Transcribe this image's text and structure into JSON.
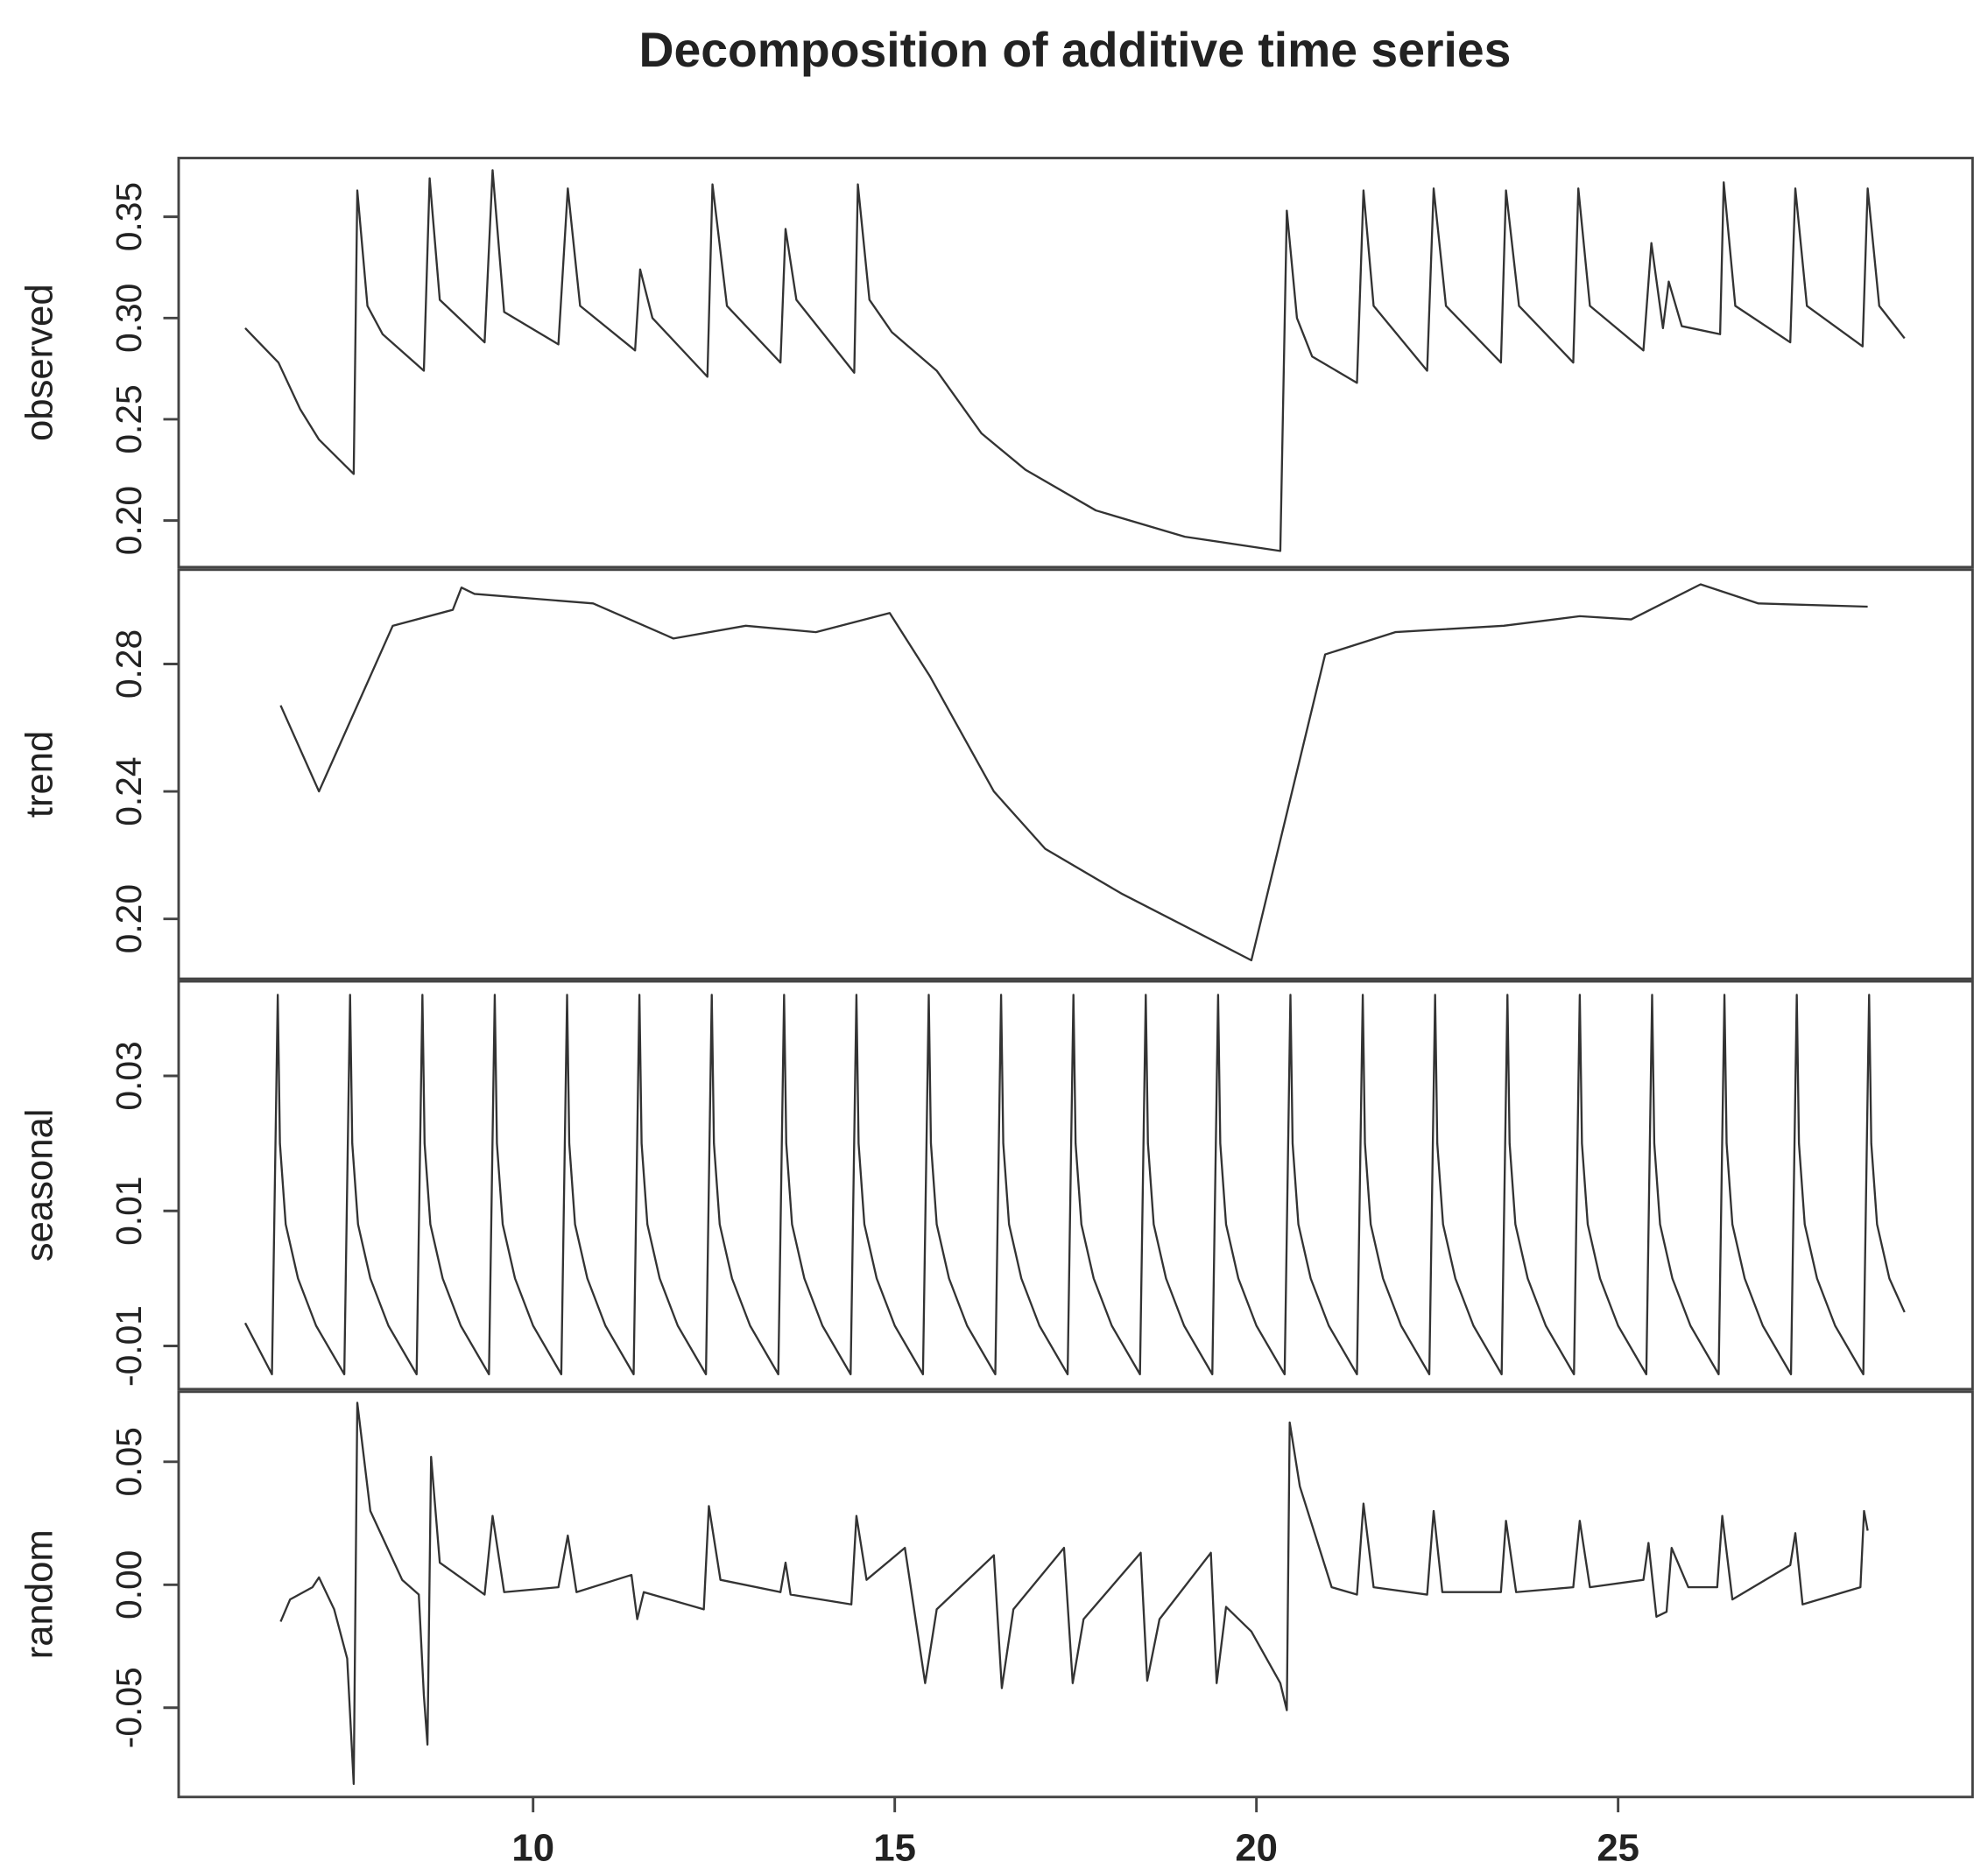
{
  "chart_data": [
    {
      "type": "line",
      "title": "Decomposition of additive time series",
      "ylabel": "observed",
      "x": [
        6.02,
        6.48,
        6.78,
        7.04,
        7.52,
        7.57,
        7.71,
        7.92,
        8.49,
        8.57,
        8.71,
        9.33,
        9.44,
        9.6,
        10.35,
        10.48,
        10.65,
        11.41,
        11.48,
        11.65,
        12.41,
        12.48,
        12.68,
        13.42,
        13.49,
        13.64,
        14.44,
        14.49,
        14.65,
        14.96,
        15.58,
        16.2,
        16.81,
        17.78,
        19.01,
        20.33,
        20.42,
        20.56,
        20.77,
        21.39,
        21.48,
        21.62,
        22.36,
        22.45,
        22.62,
        23.38,
        23.45,
        23.63,
        24.38,
        24.45,
        24.61,
        25.35,
        25.46,
        25.62,
        25.7,
        25.88,
        26.41,
        26.46,
        26.62,
        27.38,
        27.45,
        27.61,
        28.38,
        28.45,
        28.61,
        28.96
      ],
      "values": [
        0.295,
        0.278,
        0.255,
        0.24,
        0.223,
        0.363,
        0.306,
        0.292,
        0.274,
        0.369,
        0.309,
        0.288,
        0.373,
        0.303,
        0.287,
        0.364,
        0.306,
        0.284,
        0.324,
        0.3,
        0.271,
        0.366,
        0.306,
        0.278,
        0.344,
        0.309,
        0.273,
        0.366,
        0.309,
        0.293,
        0.274,
        0.243,
        0.225,
        0.205,
        0.192,
        0.185,
        0.353,
        0.3,
        0.281,
        0.268,
        0.363,
        0.306,
        0.274,
        0.364,
        0.306,
        0.278,
        0.363,
        0.306,
        0.278,
        0.364,
        0.306,
        0.284,
        0.337,
        0.295,
        0.318,
        0.296,
        0.292,
        0.367,
        0.306,
        0.288,
        0.364,
        0.306,
        0.286,
        0.364,
        0.306,
        0.29
      ],
      "xlim": [
        5.1,
        29.9
      ],
      "ylim": [
        0.177,
        0.379
      ],
      "yticks": [
        {
          "value": 0.2,
          "label": "0.20"
        },
        0.25,
        {
          "value": 0.3,
          "label": "0.30"
        },
        0.35
      ]
    },
    {
      "type": "line",
      "ylabel": "trend",
      "x": [
        6.51,
        7.04,
        8.06,
        8.89,
        9.01,
        9.19,
        10.83,
        11.94,
        12.94,
        13.91,
        14.93,
        15.49,
        16.37,
        17.08,
        18.13,
        19.93,
        20.95,
        21.92,
        23.42,
        24.47,
        25.18,
        26.14,
        26.94,
        28.45
      ],
      "values": [
        0.267,
        0.24,
        0.292,
        0.297,
        0.304,
        0.302,
        0.299,
        0.288,
        0.292,
        0.29,
        0.296,
        0.276,
        0.24,
        0.222,
        0.208,
        0.187,
        0.283,
        0.29,
        0.292,
        0.295,
        0.294,
        0.305,
        0.299,
        0.298
      ],
      "xlim": [
        5.1,
        29.9
      ],
      "ylim": [
        0.1812,
        0.3096
      ],
      "yticks": [
        {
          "value": 0.2,
          "label": "0.20"
        },
        0.24,
        0.28
      ]
    },
    {
      "type": "line",
      "ylabel": "seasonal",
      "x": [
        6.02,
        6.39,
        6.47,
        6.5,
        6.58,
        6.75,
        7.0,
        7.39,
        7.47,
        7.5,
        7.58,
        7.75,
        8.0,
        8.39,
        8.47,
        8.5,
        8.58,
        8.75,
        9.0,
        9.39,
        9.47,
        9.5,
        9.58,
        9.75,
        10.0,
        10.39,
        10.47,
        10.5,
        10.58,
        10.75,
        11.0,
        11.39,
        11.47,
        11.5,
        11.58,
        11.75,
        12.0,
        12.39,
        12.47,
        12.5,
        12.58,
        12.75,
        13.0,
        13.39,
        13.47,
        13.5,
        13.58,
        13.75,
        14.0,
        14.39,
        14.47,
        14.5,
        14.58,
        14.75,
        15.0,
        15.39,
        15.47,
        15.5,
        15.58,
        15.75,
        16.0,
        16.39,
        16.47,
        16.5,
        16.58,
        16.75,
        17.0,
        17.39,
        17.47,
        17.5,
        17.58,
        17.75,
        18.0,
        18.39,
        18.47,
        18.5,
        18.58,
        18.75,
        19.0,
        19.39,
        19.47,
        19.5,
        19.58,
        19.75,
        20.0,
        20.39,
        20.47,
        20.5,
        20.58,
        20.75,
        21.0,
        21.39,
        21.47,
        21.5,
        21.58,
        21.75,
        22.0,
        22.39,
        22.47,
        22.5,
        22.58,
        22.75,
        23.0,
        23.39,
        23.47,
        23.5,
        23.58,
        23.75,
        24.0,
        24.39,
        24.47,
        24.5,
        24.58,
        24.75,
        25.0,
        25.39,
        25.47,
        25.5,
        25.58,
        25.75,
        26.0,
        26.39,
        26.47,
        26.5,
        26.58,
        26.75,
        27.0,
        27.39,
        27.47,
        27.5,
        27.58,
        27.75,
        28.0,
        28.39,
        28.47,
        28.5,
        28.58,
        28.75,
        28.96
      ],
      "values": [
        -0.0066,
        -0.0142,
        0.042,
        0.02,
        0.008,
        0,
        -0.007,
        -0.0142,
        0.042,
        0.02,
        0.008,
        0,
        -0.007,
        -0.0142,
        0.042,
        0.02,
        0.008,
        0,
        -0.007,
        -0.0142,
        0.042,
        0.02,
        0.008,
        0,
        -0.007,
        -0.0142,
        0.042,
        0.02,
        0.008,
        0,
        -0.007,
        -0.0142,
        0.042,
        0.02,
        0.008,
        0,
        -0.007,
        -0.0142,
        0.042,
        0.02,
        0.008,
        0,
        -0.007,
        -0.0142,
        0.042,
        0.02,
        0.008,
        0,
        -0.007,
        -0.0142,
        0.042,
        0.02,
        0.008,
        0,
        -0.007,
        -0.0142,
        0.042,
        0.02,
        0.008,
        0,
        -0.007,
        -0.0142,
        0.042,
        0.02,
        0.008,
        0,
        -0.007,
        -0.0142,
        0.042,
        0.02,
        0.008,
        0,
        -0.007,
        -0.0142,
        0.042,
        0.02,
        0.008,
        0,
        -0.007,
        -0.0142,
        0.042,
        0.02,
        0.008,
        0,
        -0.007,
        -0.0142,
        0.042,
        0.02,
        0.008,
        0,
        -0.007,
        -0.0142,
        0.042,
        0.02,
        0.008,
        0,
        -0.007,
        -0.0142,
        0.042,
        0.02,
        0.008,
        0,
        -0.007,
        -0.0142,
        0.042,
        0.02,
        0.008,
        0,
        -0.007,
        -0.0142,
        0.042,
        0.02,
        0.008,
        0,
        -0.007,
        -0.0142,
        0.042,
        0.02,
        0.008,
        0,
        -0.007,
        -0.0142,
        0.042,
        0.02,
        0.008,
        0,
        -0.007,
        -0.0142,
        0.042,
        0.02,
        0.008,
        0,
        -0.007,
        -0.0142,
        0.042,
        0.02,
        0.008,
        0,
        -0.005
      ],
      "xlim": [
        5.1,
        29.9
      ],
      "ylim": [
        -0.0164,
        0.044
      ],
      "yticks": [
        -0.01,
        0.01,
        0.03
      ]
    },
    {
      "type": "line",
      "ylabel": "random",
      "x": [
        6.51,
        6.64,
        6.95,
        7.04,
        7.25,
        7.43,
        7.52,
        7.57,
        7.75,
        8.19,
        8.42,
        8.49,
        8.54,
        8.59,
        8.71,
        9.33,
        9.44,
        9.6,
        10.35,
        10.48,
        10.6,
        11.36,
        11.44,
        11.53,
        12.36,
        12.43,
        12.59,
        13.42,
        13.49,
        13.56,
        14.4,
        14.47,
        14.61,
        15.14,
        15.42,
        15.58,
        16.37,
        16.48,
        16.64,
        17.34,
        17.46,
        17.61,
        18.4,
        18.49,
        18.66,
        19.37,
        19.45,
        19.58,
        19.93,
        20.33,
        20.42,
        20.46,
        20.6,
        21.04,
        21.39,
        21.48,
        21.62,
        22.36,
        22.45,
        22.57,
        23.38,
        23.45,
        23.59,
        24.38,
        24.47,
        24.61,
        25.35,
        25.42,
        25.53,
        25.67,
        25.74,
        25.97,
        26.37,
        26.44,
        26.58,
        27.38,
        27.45,
        27.55,
        28.35,
        28.4,
        28.45
      ],
      "values": [
        -0.015,
        -0.006,
        -0.001,
        0.003,
        -0.01,
        -0.03,
        -0.081,
        0.074,
        0.03,
        0.002,
        -0.004,
        -0.045,
        -0.065,
        0.052,
        0.009,
        -0.004,
        0.028,
        -0.003,
        -0.001,
        0.02,
        -0.003,
        0.004,
        -0.014,
        -0.003,
        -0.01,
        0.032,
        0.002,
        -0.003,
        0.009,
        -0.004,
        -0.008,
        0.028,
        0.002,
        0.015,
        -0.04,
        -0.01,
        0.012,
        -0.042,
        -0.01,
        0.015,
        -0.04,
        -0.014,
        0.013,
        -0.039,
        -0.014,
        0.013,
        -0.04,
        -0.009,
        -0.019,
        -0.04,
        -0.051,
        0.066,
        0.04,
        -0.001,
        -0.004,
        0.033,
        -0.001,
        -0.004,
        0.03,
        -0.003,
        -0.003,
        0.026,
        -0.003,
        -0.001,
        0.026,
        -0.001,
        0.002,
        0.017,
        -0.013,
        -0.011,
        0.015,
        -0.001,
        -0.001,
        0.028,
        -0.006,
        0.008,
        0.021,
        -0.008,
        -0.001,
        0.03,
        0.022
      ],
      "xlim": [
        5.1,
        29.9
      ],
      "ylim": [
        -0.0863,
        0.0785
      ],
      "yticks": [
        -0.05,
        {
          "value": 0,
          "label": "0.00"
        },
        0.05
      ],
      "xticks": [
        10,
        15,
        20,
        25
      ]
    }
  ]
}
